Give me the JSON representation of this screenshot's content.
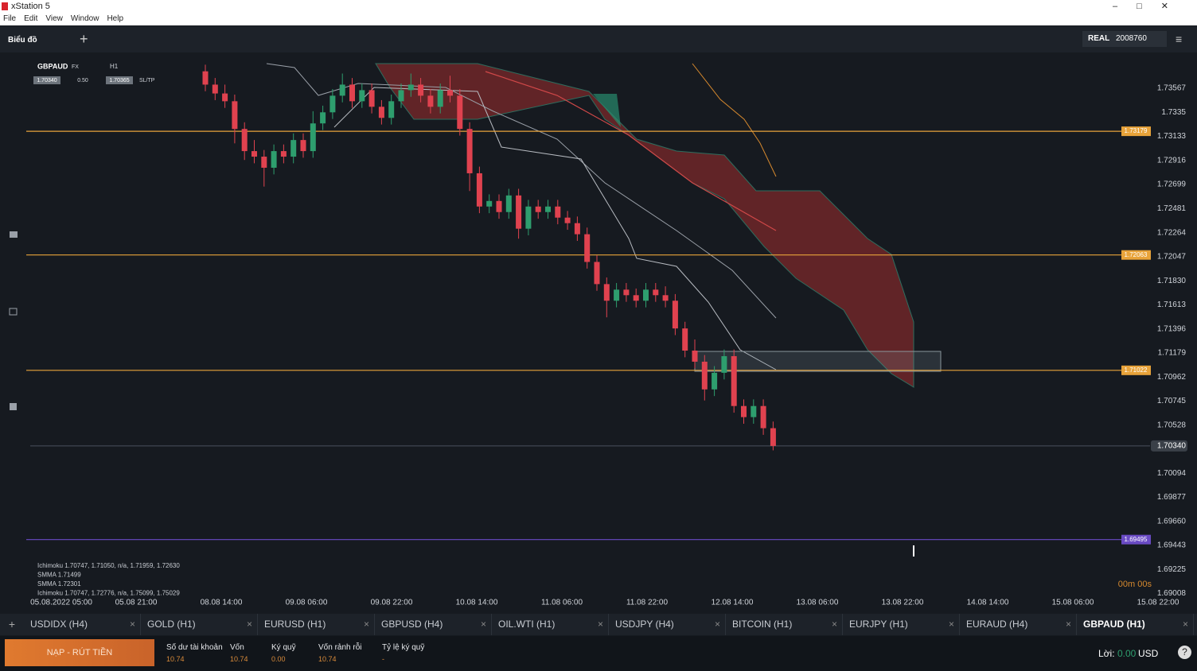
{
  "window": {
    "title": "xStation 5",
    "menu": [
      "File",
      "Edit",
      "View",
      "Window",
      "Help"
    ]
  },
  "toolbar": {
    "section": "Biểu đồ",
    "account_type": "REAL",
    "account_number": "2008760"
  },
  "chart_data": {
    "type": "candlestick",
    "symbol": "GBPAUD",
    "market": "FX",
    "timeframe": "H1",
    "bid": "1.70340",
    "spread": "0.50",
    "ask": "1.70365",
    "sltp": "SL/TP",
    "timer": "00m 00s",
    "ylim": [
      1.6884,
      1.7389
    ],
    "yticks": [
      1.73567,
      1.7335,
      1.73133,
      1.72916,
      1.72699,
      1.72481,
      1.72264,
      1.72047,
      {
        "value": 1.7183,
        "label": "1.71830"
      },
      1.71613,
      1.71396,
      1.71179,
      1.70962,
      1.70745,
      1.70528,
      1.70094,
      1.69877,
      {
        "value": 1.6966,
        "label": "1.69660"
      },
      1.69443,
      1.69225,
      1.69008
    ],
    "xticks": [
      "05.08.2022 05:00",
      "05.08 21:00",
      "08.08 14:00",
      "09.08 06:00",
      "09.08 22:00",
      "10.08 14:00",
      "11.08 06:00",
      "11.08 22:00",
      "12.08 14:00",
      "13.08 06:00",
      "13.08 22:00",
      "14.08 14:00",
      "15.08 06:00",
      "15.08 22:00"
    ],
    "up_color": "#2e9e6e",
    "down_color": "#e0424f",
    "current_price": {
      "value": 1.7034,
      "label": "1.70340"
    },
    "levels": [
      {
        "value": 1.73179,
        "color": "#e8a33a"
      },
      {
        "value": 1.72063,
        "color": "#e8a33a"
      },
      {
        "value": 1.71022,
        "color": "#e8a33a"
      },
      {
        "value": 1.69495,
        "color": "#6a4bc4"
      }
    ],
    "indicators": [
      "Ichimoku 1.70747, 1.71050, n/a, 1.71959, 1.72630",
      "SMMA 1.71499",
      "SMMA 1.72301",
      "Ichimoku 1.70747, 1.72776, n/a, 1.75099, 1.75029"
    ],
    "candles": [
      [
        1.7372,
        1.7378,
        1.7354,
        1.736
      ],
      [
        1.736,
        1.7366,
        1.7346,
        1.7352
      ],
      [
        1.7352,
        1.736,
        1.7339,
        1.7345
      ],
      [
        1.7345,
        1.7351,
        1.7307,
        1.732
      ],
      [
        1.732,
        1.7326,
        1.7292,
        1.73
      ],
      [
        1.73,
        1.731,
        1.7289,
        1.7295
      ],
      [
        1.7295,
        1.7301,
        1.7268,
        1.7285
      ],
      [
        1.7285,
        1.7306,
        1.7279,
        1.73
      ],
      [
        1.73,
        1.7306,
        1.7289,
        1.7295
      ],
      [
        1.7295,
        1.7316,
        1.7289,
        1.731
      ],
      [
        1.731,
        1.7316,
        1.7294,
        1.73
      ],
      [
        1.73,
        1.7336,
        1.7294,
        1.7325
      ],
      [
        1.7325,
        1.7341,
        1.7319,
        1.7335
      ],
      [
        1.7335,
        1.7356,
        1.7329,
        1.735
      ],
      [
        1.735,
        1.737,
        1.7344,
        1.736
      ],
      [
        1.736,
        1.7366,
        1.7339,
        1.7345
      ],
      [
        1.7345,
        1.7361,
        1.7339,
        1.7355
      ],
      [
        1.7355,
        1.7361,
        1.7334,
        1.734
      ],
      [
        1.734,
        1.7346,
        1.7324,
        1.733
      ],
      [
        1.733,
        1.7351,
        1.7324,
        1.7345
      ],
      [
        1.7345,
        1.7361,
        1.7339,
        1.7355
      ],
      [
        1.7355,
        1.737,
        1.7349,
        1.736
      ],
      [
        1.736,
        1.7366,
        1.7344,
        1.735
      ],
      [
        1.735,
        1.7356,
        1.7334,
        1.734
      ],
      [
        1.734,
        1.7361,
        1.7334,
        1.7355
      ],
      [
        1.7355,
        1.7368,
        1.7344,
        1.735
      ],
      [
        1.735,
        1.7356,
        1.7314,
        1.732
      ],
      [
        1.732,
        1.7326,
        1.7264,
        1.728
      ],
      [
        1.728,
        1.7286,
        1.7244,
        1.725
      ],
      [
        1.725,
        1.7261,
        1.7244,
        1.7255
      ],
      [
        1.7255,
        1.7261,
        1.7239,
        1.7245
      ],
      [
        1.7245,
        1.7266,
        1.7239,
        1.726
      ],
      [
        1.726,
        1.7266,
        1.7221,
        1.723
      ],
      [
        1.723,
        1.7256,
        1.7224,
        1.725
      ],
      [
        1.725,
        1.7256,
        1.7239,
        1.7245
      ],
      [
        1.7245,
        1.7256,
        1.7239,
        1.725
      ],
      [
        1.725,
        1.7256,
        1.7234,
        1.724
      ],
      [
        1.724,
        1.7246,
        1.7229,
        1.7235
      ],
      [
        1.7235,
        1.7241,
        1.7219,
        1.7225
      ],
      [
        1.7225,
        1.7231,
        1.7194,
        1.72
      ],
      [
        1.72,
        1.7206,
        1.7174,
        1.718
      ],
      [
        1.718,
        1.7186,
        1.715,
        1.7165
      ],
      [
        1.7165,
        1.7181,
        1.7159,
        1.7175
      ],
      [
        1.7175,
        1.7181,
        1.7164,
        1.717
      ],
      [
        1.717,
        1.7176,
        1.7159,
        1.7165
      ],
      [
        1.7165,
        1.7181,
        1.7159,
        1.7175
      ],
      [
        1.7175,
        1.7181,
        1.7164,
        1.717
      ],
      [
        1.717,
        1.7178,
        1.7159,
        1.7165
      ],
      [
        1.7165,
        1.7171,
        1.7134,
        1.714
      ],
      [
        1.714,
        1.7146,
        1.7114,
        1.712
      ],
      [
        1.712,
        1.713,
        1.7104,
        1.711
      ],
      [
        1.711,
        1.7116,
        1.7075,
        1.7085
      ],
      [
        1.7085,
        1.7106,
        1.7079,
        1.71
      ],
      [
        1.71,
        1.7121,
        1.7094,
        1.7115
      ],
      [
        1.7115,
        1.7121,
        1.7064,
        1.707
      ],
      [
        1.707,
        1.7076,
        1.7054,
        1.706
      ],
      [
        1.706,
        1.7076,
        1.7054,
        1.707
      ],
      [
        1.707,
        1.7076,
        1.7044,
        1.705
      ],
      [
        1.705,
        1.7056,
        1.703,
        1.7034
      ]
    ]
  },
  "tabs": [
    "USDIDX (H4)",
    "GOLD (H1)",
    "EURUSD (H1)",
    "GBPUSD (H4)",
    "OIL.WTI (H1)",
    "USDJPY (H4)",
    "BITCOIN (H1)",
    "EURJPY (H1)",
    "EURAUD (H4)",
    "GBPAUD (H1)"
  ],
  "footer": {
    "deposit_button": "NẠP - RÚT TIỀN",
    "stats": [
      {
        "label": "Số dư tài khoản",
        "value": "10.74"
      },
      {
        "label": "Vốn",
        "value": "10.74"
      },
      {
        "label": "Ký quỹ",
        "value": "0.00"
      },
      {
        "label": "Vốn rảnh rỗi",
        "value": "10.74"
      },
      {
        "label": "Tỷ lệ ký quỹ",
        "value": "-"
      }
    ],
    "profit_label": "Lời:",
    "profit_value": "0.00",
    "currency": "USD"
  }
}
